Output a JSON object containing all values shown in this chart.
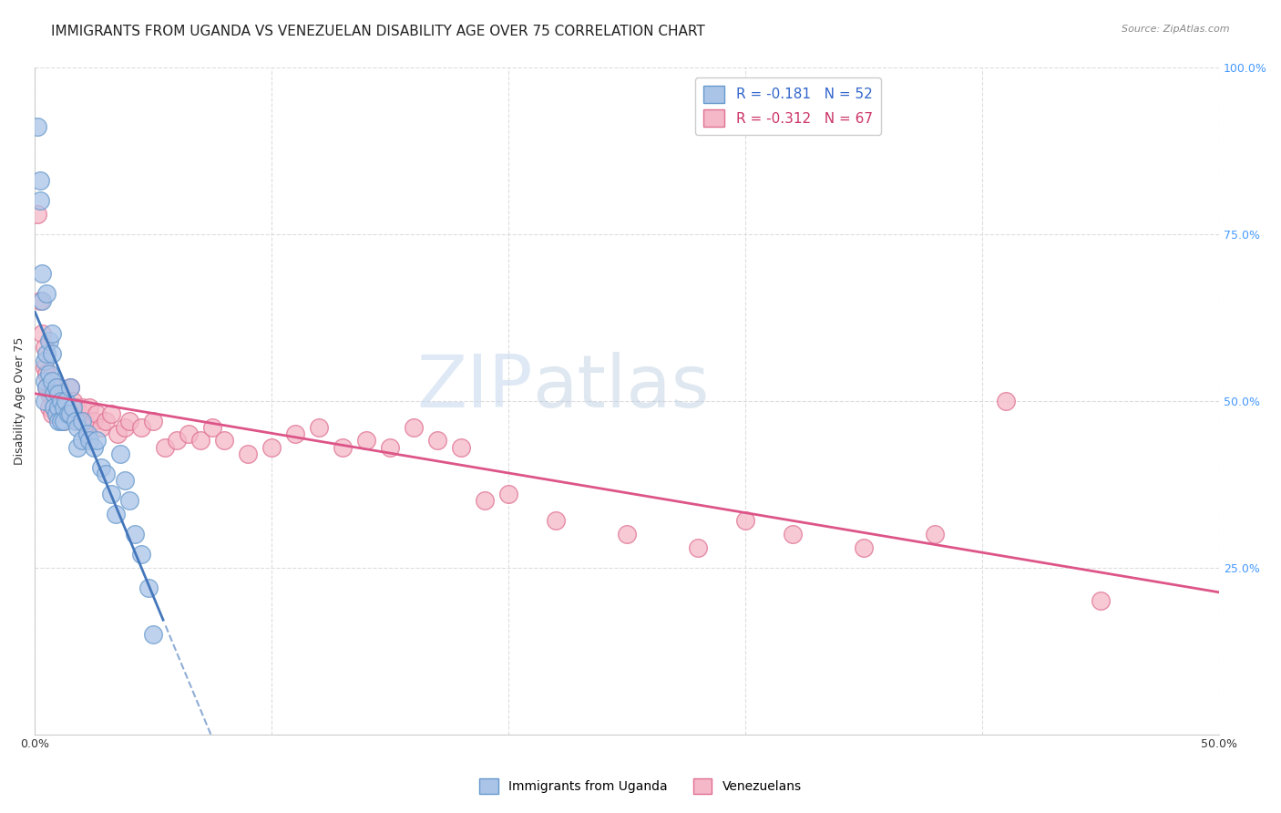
{
  "title": "IMMIGRANTS FROM UGANDA VS VENEZUELAN DISABILITY AGE OVER 75 CORRELATION CHART",
  "source": "Source: ZipAtlas.com",
  "ylabel": "Disability Age Over 75",
  "xlim": [
    0.0,
    0.5
  ],
  "ylim": [
    0.0,
    1.0
  ],
  "yticks": [
    0.0,
    0.25,
    0.5,
    0.75,
    1.0
  ],
  "xticks": [
    0.0,
    0.1,
    0.2,
    0.3,
    0.4,
    0.5
  ],
  "legend_line1": "R = -0.181   N = 52",
  "legend_line2": "R = -0.312   N = 67",
  "legend_label1": "Immigrants from Uganda",
  "legend_label2": "Venezuelans",
  "watermark_zip": "ZIP",
  "watermark_atlas": "atlas",
  "uganda_color": "#aac4e8",
  "uganda_edge_color": "#6699cc",
  "venezuelan_color": "#f4b8c8",
  "venezuelan_edge_color": "#e07090",
  "uganda_line_color": "#4477bb",
  "venezuelan_line_color": "#dd5588",
  "background_color": "#ffffff",
  "grid_color": "#dddddd",
  "right_tick_color": "#4499ff",
  "title_fontsize": 11,
  "label_fontsize": 9,
  "tick_fontsize": 9,
  "legend_fontsize": 11,
  "uganda_scatter_x": [
    0.001,
    0.002,
    0.002,
    0.003,
    0.003,
    0.004,
    0.004,
    0.004,
    0.005,
    0.005,
    0.005,
    0.006,
    0.006,
    0.007,
    0.007,
    0.007,
    0.008,
    0.008,
    0.009,
    0.009,
    0.01,
    0.01,
    0.01,
    0.011,
    0.011,
    0.012,
    0.012,
    0.013,
    0.014,
    0.015,
    0.015,
    0.016,
    0.017,
    0.018,
    0.018,
    0.02,
    0.02,
    0.022,
    0.023,
    0.025,
    0.026,
    0.028,
    0.03,
    0.032,
    0.034,
    0.036,
    0.038,
    0.04,
    0.042,
    0.045,
    0.048,
    0.05
  ],
  "uganda_scatter_y": [
    0.91,
    0.83,
    0.8,
    0.69,
    0.65,
    0.56,
    0.53,
    0.5,
    0.66,
    0.57,
    0.52,
    0.59,
    0.54,
    0.6,
    0.57,
    0.53,
    0.51,
    0.49,
    0.52,
    0.48,
    0.51,
    0.49,
    0.47,
    0.5,
    0.47,
    0.49,
    0.47,
    0.5,
    0.48,
    0.52,
    0.48,
    0.49,
    0.47,
    0.46,
    0.43,
    0.47,
    0.44,
    0.45,
    0.44,
    0.43,
    0.44,
    0.4,
    0.39,
    0.36,
    0.33,
    0.42,
    0.38,
    0.35,
    0.3,
    0.27,
    0.22,
    0.15
  ],
  "venezuelan_scatter_x": [
    0.001,
    0.002,
    0.003,
    0.004,
    0.004,
    0.005,
    0.005,
    0.006,
    0.006,
    0.007,
    0.007,
    0.008,
    0.008,
    0.009,
    0.009,
    0.01,
    0.01,
    0.011,
    0.012,
    0.013,
    0.014,
    0.015,
    0.016,
    0.017,
    0.018,
    0.019,
    0.02,
    0.021,
    0.022,
    0.023,
    0.025,
    0.026,
    0.028,
    0.03,
    0.032,
    0.035,
    0.038,
    0.04,
    0.045,
    0.05,
    0.055,
    0.06,
    0.065,
    0.07,
    0.075,
    0.08,
    0.09,
    0.1,
    0.11,
    0.12,
    0.13,
    0.14,
    0.15,
    0.16,
    0.17,
    0.18,
    0.19,
    0.2,
    0.22,
    0.25,
    0.28,
    0.3,
    0.32,
    0.35,
    0.38,
    0.41,
    0.45
  ],
  "venezuelan_scatter_y": [
    0.78,
    0.65,
    0.6,
    0.58,
    0.55,
    0.54,
    0.52,
    0.51,
    0.49,
    0.52,
    0.48,
    0.52,
    0.49,
    0.51,
    0.48,
    0.52,
    0.49,
    0.5,
    0.47,
    0.49,
    0.48,
    0.52,
    0.5,
    0.49,
    0.47,
    0.48,
    0.49,
    0.47,
    0.46,
    0.49,
    0.47,
    0.48,
    0.46,
    0.47,
    0.48,
    0.45,
    0.46,
    0.47,
    0.46,
    0.47,
    0.43,
    0.44,
    0.45,
    0.44,
    0.46,
    0.44,
    0.42,
    0.43,
    0.45,
    0.46,
    0.43,
    0.44,
    0.43,
    0.46,
    0.44,
    0.43,
    0.35,
    0.36,
    0.32,
    0.3,
    0.28,
    0.32,
    0.3,
    0.28,
    0.3,
    0.5,
    0.2
  ]
}
